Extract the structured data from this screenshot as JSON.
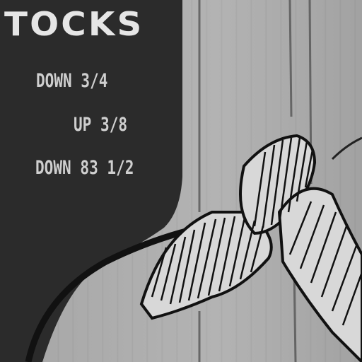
{
  "headline": "TOCKS",
  "quotes": [
    "DOWN 3/4",
    "UP 3/8",
    "DOWN 83 1/2"
  ],
  "colors": {
    "dark_panel": "#2b2b2b",
    "light_panel": "#adadad",
    "ink": "#1a1a1a",
    "text": "#e6e6e6"
  },
  "icons": {
    "illustration": "hand-holding-chart-line-icon"
  }
}
